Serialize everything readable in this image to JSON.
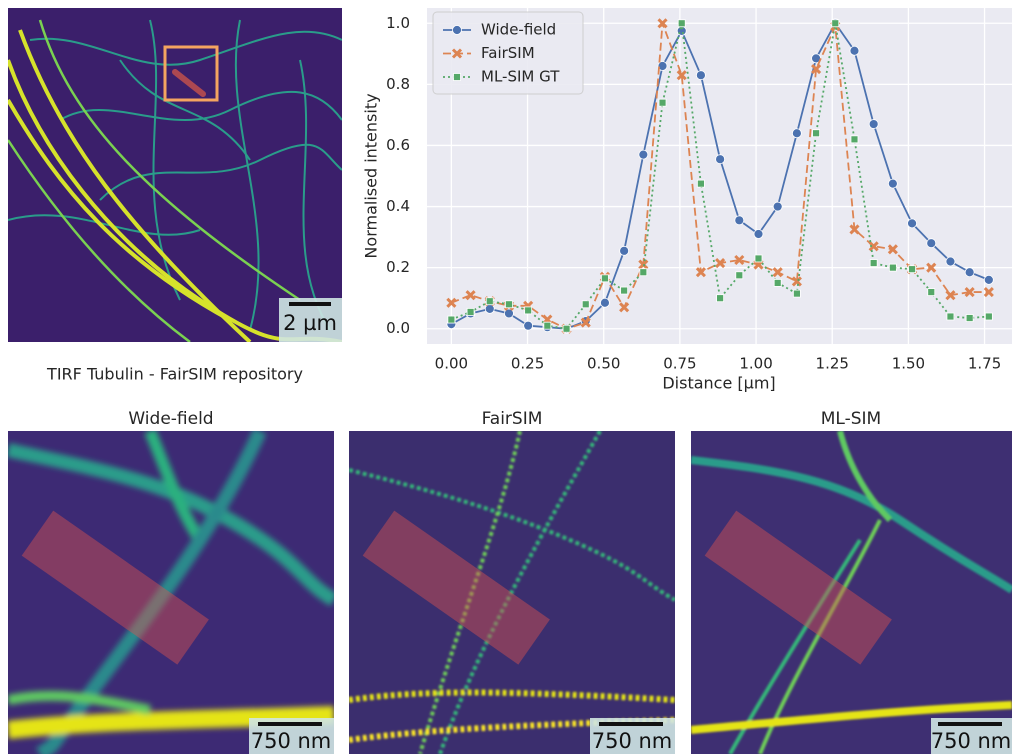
{
  "chart_data": {
    "type": "line",
    "xlabel": "Distance [µm]",
    "ylabel": "Normalised intensity",
    "x": [
      0,
      0.063,
      0.126,
      0.189,
      0.252,
      0.315,
      0.378,
      0.441,
      0.504,
      0.567,
      0.63,
      0.693,
      0.756,
      0.819,
      0.882,
      0.945,
      1.008,
      1.071,
      1.134,
      1.197,
      1.26,
      1.323,
      1.386,
      1.449,
      1.512,
      1.575,
      1.638,
      1.701,
      1.764
    ],
    "series": [
      {
        "name": "Wide-field",
        "color": "#4c72b0",
        "marker": "circle",
        "dash": "solid",
        "values": [
          0.015,
          0.05,
          0.065,
          0.05,
          0.01,
          0.005,
          0.0,
          0.025,
          0.085,
          0.255,
          0.57,
          0.86,
          0.975,
          0.83,
          0.555,
          0.355,
          0.31,
          0.4,
          0.64,
          0.885,
          1.0,
          0.91,
          0.67,
          0.475,
          0.345,
          0.28,
          0.22,
          0.185,
          0.16
        ]
      },
      {
        "name": "FairSIM",
        "color": "#dd8452",
        "marker": "x",
        "dash": "dashed",
        "values": [
          0.085,
          0.11,
          0.09,
          0.075,
          0.075,
          0.03,
          0.0,
          0.02,
          0.17,
          0.07,
          0.21,
          1.0,
          0.83,
          0.185,
          0.215,
          0.225,
          0.21,
          0.185,
          0.155,
          0.85,
          0.99,
          0.325,
          0.27,
          0.26,
          0.195,
          0.2,
          0.11,
          0.12,
          0.12
        ]
      },
      {
        "name": "ML-SIM GT",
        "color": "#55a868",
        "marker": "square",
        "dash": "dotted",
        "values": [
          0.03,
          0.055,
          0.09,
          0.08,
          0.06,
          0.01,
          0.0,
          0.08,
          0.165,
          0.125,
          0.185,
          0.74,
          1.0,
          0.475,
          0.1,
          0.175,
          0.23,
          0.15,
          0.115,
          0.64,
          1.0,
          0.62,
          0.215,
          0.2,
          0.195,
          0.12,
          0.04,
          0.035,
          0.04
        ]
      }
    ],
    "xlim": [
      -0.08,
      1.84
    ],
    "ylim": [
      -0.05,
      1.05
    ],
    "xticks": [
      {
        "value": 0,
        "label": "0.00"
      },
      0.25,
      {
        "value": 0.5,
        "label": "0.50"
      },
      0.75,
      {
        "value": 1,
        "label": "1.00"
      },
      1.25,
      {
        "value": 1.5,
        "label": "1.50"
      },
      1.75
    ],
    "yticks": [
      {
        "value": 0,
        "label": "0.0"
      },
      0.2,
      0.4,
      0.6,
      0.8,
      {
        "value": 1,
        "label": "1.0"
      }
    ],
    "grid": true,
    "legend": "upper left"
  },
  "overview": {
    "caption": "TIRF Tubulin - FairSIM repository",
    "scale_label": "2 µm"
  },
  "panels": [
    {
      "title": "Wide-field",
      "scale_label": "750 nm"
    },
    {
      "title": "FairSIM",
      "scale_label": "750 nm"
    },
    {
      "title": "ML-SIM",
      "scale_label": "750 nm"
    }
  ]
}
